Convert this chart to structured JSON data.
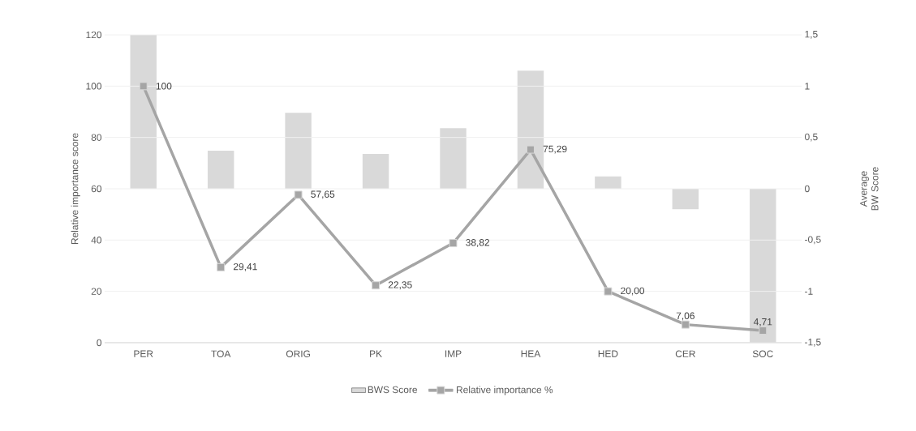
{
  "chart_data": {
    "type": "bar",
    "ylabel": "Relative importance score",
    "y2label": "Average BW Score",
    "categories": [
      "PER",
      "TOA",
      "ORIG",
      "PK",
      "IMP",
      "HEA",
      "HED",
      "CER",
      "SOC"
    ],
    "series": [
      {
        "name": "BWS Score",
        "axis": "y2",
        "color": "#d9d9d9",
        "values": [
          1.5,
          0.37,
          0.74,
          0.34,
          0.59,
          1.15,
          0.12,
          -0.2,
          -1.5
        ]
      },
      {
        "name": "Relative importance %",
        "type": "line",
        "color": "#a5a5a5",
        "values": [
          100,
          29.41,
          57.65,
          22.35,
          38.82,
          75.29,
          20,
          7.06,
          4.71
        ],
        "value_labels": [
          "100",
          "29,41",
          "57,65",
          "22,35",
          "38,82",
          "75,29",
          "20,00",
          "7,06",
          "4,71"
        ]
      }
    ],
    "ylim": [
      0,
      120
    ],
    "yticks": [
      0,
      20,
      40,
      60,
      80,
      100,
      120
    ],
    "y2lim": [
      -1.5,
      1.5
    ],
    "y2ticks": [
      {
        "value": -1.5,
        "label": "-1,5"
      },
      {
        "value": -1,
        "label": "-1"
      },
      {
        "value": -0.5,
        "label": "-0,5"
      },
      {
        "value": 0,
        "label": "0"
      },
      {
        "value": 0.5,
        "label": "0,5"
      },
      {
        "value": 1,
        "label": "1"
      },
      {
        "value": 1.5,
        "label": "1,5"
      }
    ],
    "grid": "y",
    "legend": "bottom",
    "marker": "square",
    "line_style": "solid"
  }
}
